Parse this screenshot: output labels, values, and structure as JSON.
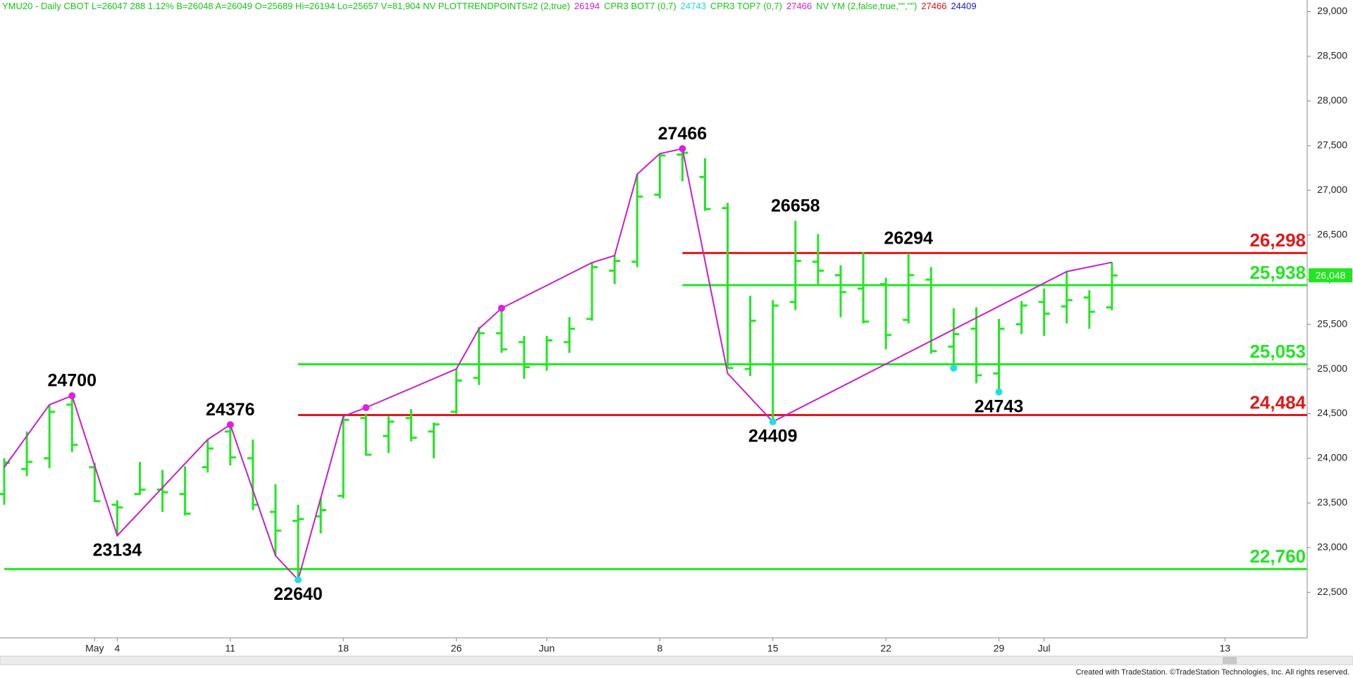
{
  "chart_data": {
    "type": "ohlc",
    "header": [
      {
        "text": "YMU20 - Daily  CBOT  L=26047  288  1.12%  B=26048  A=26049  O=25689  Hi=26194  Lo=25657  V=81,904  NV  PLOTTRENDPOINTS#2 (2,true)",
        "color": "#16c516"
      },
      {
        "text": "26194",
        "color": "#d21cd2"
      },
      {
        "text": "CPR3 BOT7 (0,7)",
        "color": "#16c516"
      },
      {
        "text": "24743",
        "color": "#1ed6e0"
      },
      {
        "text": "CPR3 TOP7 (0,7)",
        "color": "#16c516"
      },
      {
        "text": "27466",
        "color": "#d21cd2"
      },
      {
        "text": "NV YM (2,false,true,\"\",\"\")",
        "color": "#16c516"
      },
      {
        "text": "27466",
        "color": "#e01010"
      },
      {
        "text": "24409",
        "color": "#1a1ab4"
      }
    ],
    "footer": "Created with TradeStation. ©TradeStation Technologies, Inc. All rights reserved.",
    "categories": [
      null,
      null,
      null,
      null,
      "May",
      "4",
      null,
      null,
      null,
      null,
      "11",
      null,
      null,
      null,
      null,
      "18",
      null,
      null,
      null,
      null,
      "26",
      null,
      null,
      null,
      "Jun",
      null,
      null,
      null,
      null,
      "8",
      null,
      null,
      null,
      null,
      "15",
      null,
      null,
      null,
      null,
      "22",
      null,
      null,
      null,
      null,
      "29",
      null,
      "Jul",
      null,
      null,
      null,
      null,
      null,
      null,
      null,
      "13",
      null,
      null,
      null
    ],
    "color": "#22e622",
    "open": [
      23600,
      23880,
      24000,
      24600,
      23900,
      23480,
      23600,
      23650,
      23600,
      23900,
      24300,
      24000,
      23400,
      23300,
      23350,
      23580,
      24450,
      24250,
      24450,
      24300,
      24520,
      24900,
      25400,
      25300,
      25050,
      25300,
      25560,
      26100,
      26200,
      26950,
      27400,
      27150,
      26800,
      25000,
      25050,
      25750,
      26200,
      26050,
      25900,
      25950,
      25550,
      26000,
      25250,
      25450,
      24950,
      25500,
      25750,
      25700,
      25800,
      25689,
      null,
      null,
      null,
      null,
      null,
      null,
      null,
      null
    ],
    "high": [
      24000,
      24300,
      24600,
      24700,
      23950,
      23530,
      23960,
      23870,
      23910,
      24210,
      24376,
      24210,
      23710,
      23480,
      23550,
      24470,
      24500,
      24470,
      24550,
      24400,
      25000,
      25470,
      25680,
      25370,
      25370,
      25580,
      26190,
      26270,
      27180,
      27410,
      27466,
      27360,
      26860,
      25820,
      25770,
      26658,
      26510,
      26160,
      26310,
      26020,
      26294,
      26140,
      25680,
      25690,
      25560,
      25760,
      25900,
      26090,
      25880,
      26194,
      null,
      null,
      null,
      null,
      null,
      null,
      null,
      null
    ],
    "low": [
      23480,
      23800,
      23890,
      24070,
      23510,
      23134,
      23590,
      23400,
      23360,
      23840,
      23920,
      23420,
      22910,
      22640,
      23160,
      23550,
      24030,
      24060,
      24190,
      24000,
      24500,
      24820,
      25180,
      24890,
      24980,
      25180,
      25540,
      25950,
      26140,
      26910,
      27100,
      26770,
      25010,
      24920,
      24409,
      25660,
      25950,
      25580,
      25510,
      25220,
      25510,
      25170,
      25010,
      24840,
      24743,
      25390,
      25370,
      25510,
      25450,
      25657,
      null,
      null,
      null,
      null,
      null,
      null,
      null,
      null
    ],
    "close": [
      23950,
      23960,
      24520,
      24150,
      23520,
      23450,
      23650,
      23620,
      23380,
      24110,
      24010,
      23480,
      23190,
      23320,
      23420,
      24430,
      24040,
      24410,
      24230,
      24380,
      24870,
      25400,
      25220,
      25020,
      25320,
      25450,
      26140,
      26210,
      26930,
      27390,
      27420,
      26790,
      25010,
      25540,
      25710,
      26210,
      26100,
      25860,
      25530,
      25380,
      26050,
      25200,
      25390,
      24930,
      25450,
      25710,
      25620,
      25770,
      25640,
      26047,
      null,
      null,
      null,
      null,
      null,
      null,
      null,
      null
    ],
    "trend_line": {
      "color": "#c81ec8",
      "x": [
        0,
        2,
        3,
        5,
        9,
        10,
        12,
        13,
        15,
        16,
        20,
        21,
        22,
        26,
        27,
        28,
        29,
        30,
        32,
        34,
        47,
        49
      ],
      "values": [
        23900,
        24600,
        24700,
        23134,
        24210,
        24376,
        22910,
        22640,
        24470,
        24567,
        25000,
        25450,
        25680,
        26190,
        26270,
        27180,
        27410,
        27466,
        24950,
        24409,
        26090,
        26194
      ]
    },
    "dots": [
      {
        "x": 3,
        "value": 24700,
        "color": "#e01ee0"
      },
      {
        "x": 10,
        "value": 24376,
        "color": "#e01ee0"
      },
      {
        "x": 16,
        "value": 24567,
        "color": "#e01ee0"
      },
      {
        "x": 22,
        "value": 25680,
        "color": "#e01ee0"
      },
      {
        "x": 30,
        "value": 27466,
        "color": "#e01ee0"
      },
      {
        "x": 13,
        "value": 22640,
        "color": "#1ee0e0"
      },
      {
        "x": 34,
        "value": 24409,
        "color": "#1ee0e0"
      },
      {
        "x": 42,
        "value": 25010,
        "color": "#1ee0e0"
      },
      {
        "x": 44,
        "value": 24743,
        "color": "#1ee0e0"
      }
    ],
    "annotations": [
      {
        "x": 3,
        "value": 24700,
        "position": "above"
      },
      {
        "x": 5,
        "value": 23134,
        "position": "below"
      },
      {
        "x": 10,
        "value": 24376,
        "position": "above"
      },
      {
        "x": 13,
        "value": 22640,
        "position": "below"
      },
      {
        "x": 30,
        "value": 27466,
        "position": "above"
      },
      {
        "x": 35,
        "value": 26658,
        "position": "above"
      },
      {
        "x": 34,
        "value": 24409,
        "position": "below"
      },
      {
        "x": 40,
        "value": 26294,
        "position": "above"
      },
      {
        "x": 44,
        "value": 24743,
        "position": "below"
      }
    ],
    "levels": [
      {
        "value": 26298,
        "label": "26,298",
        "color": "#e01818",
        "start": 30
      },
      {
        "value": 25938,
        "label": "25,938",
        "color": "#22e622",
        "start": 30
      },
      {
        "value": 25053,
        "label": "25,053",
        "color": "#22e622",
        "start": 13
      },
      {
        "value": 24484,
        "label": "24,484",
        "color": "#e01818",
        "start": 13
      },
      {
        "value": 22760,
        "label": "22,760",
        "color": "#22e622",
        "start": 0
      }
    ],
    "last_price": {
      "value": 26048,
      "label": "26,048"
    },
    "ylim": [
      21990,
      29130
    ],
    "yticks": [
      {
        "value": 22500,
        "label": "22,500"
      },
      {
        "value": 23000,
        "label": "23,000"
      },
      {
        "value": 23500,
        "label": "23,500"
      },
      {
        "value": 24000,
        "label": "24,000"
      },
      {
        "value": 24500,
        "label": "24,500"
      },
      {
        "value": 25000,
        "label": "25,000"
      },
      {
        "value": 25500,
        "label": "25,500"
      },
      {
        "value": 26000,
        "label": "26,000"
      },
      {
        "value": 26500,
        "label": "26,500"
      },
      {
        "value": 27000,
        "label": "27,000"
      },
      {
        "value": 27500,
        "label": "27,500"
      },
      {
        "value": 28000,
        "label": "28,000"
      },
      {
        "value": 28500,
        "label": "28,500"
      },
      {
        "value": 29000,
        "label": "29,000"
      }
    ]
  }
}
